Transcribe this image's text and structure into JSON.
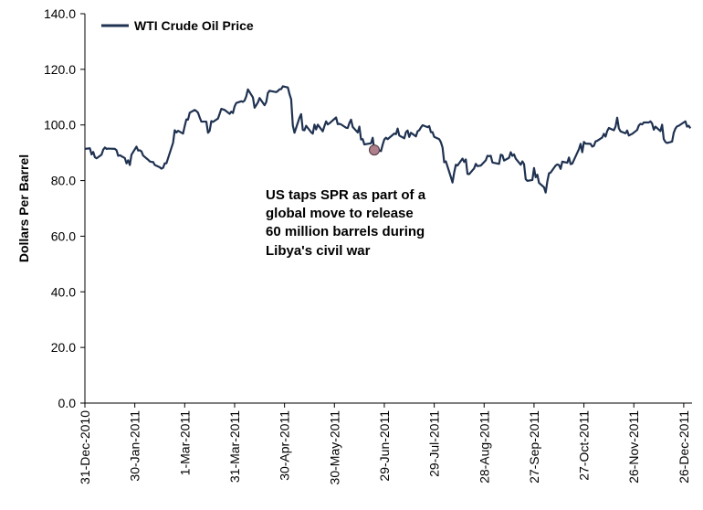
{
  "chart_data": {
    "type": "line",
    "title": "",
    "xlabel": "",
    "ylabel": "Dollars Per Barrel",
    "ylim": [
      0,
      140
    ],
    "y_ticks": [
      "0.0",
      "20.0",
      "40.0",
      "60.0",
      "80.0",
      "100.0",
      "120.0",
      "140.0"
    ],
    "x_range": [
      "2010-12-31",
      "2011-12-30"
    ],
    "x_tick_dates": [
      "2010-12-31",
      "2011-01-30",
      "2011-03-01",
      "2011-03-31",
      "2011-04-30",
      "2011-05-30",
      "2011-06-29",
      "2011-07-29",
      "2011-08-28",
      "2011-09-27",
      "2011-10-27",
      "2011-11-26",
      "2011-12-26"
    ],
    "x_tick_labels": [
      "31-Dec-2010",
      "30-Jan-2011",
      "1-Mar-2011",
      "31-Mar-2011",
      "30-Apr-2011",
      "30-May-2011",
      "29-Jun-2011",
      "29-Jul-2011",
      "28-Aug-2011",
      "27-Sep-2011",
      "27-Oct-2011",
      "26-Nov-2011",
      "26-Dec-2011"
    ],
    "grid": false,
    "legend": {
      "position": "top-left",
      "entries": [
        "WTI Crude Oil Price"
      ]
    },
    "series": [
      {
        "name": "WTI Crude Oil Price",
        "color": "#1f3251",
        "points": [
          [
            "2010-12-31",
            91.4
          ],
          [
            "2011-01-03",
            91.6
          ],
          [
            "2011-01-04",
            89.4
          ],
          [
            "2011-01-05",
            90.3
          ],
          [
            "2011-01-06",
            88.4
          ],
          [
            "2011-01-07",
            88.0
          ],
          [
            "2011-01-10",
            89.3
          ],
          [
            "2011-01-11",
            91.1
          ],
          [
            "2011-01-12",
            91.9
          ],
          [
            "2011-01-13",
            91.4
          ],
          [
            "2011-01-14",
            91.5
          ],
          [
            "2011-01-18",
            91.4
          ],
          [
            "2011-01-19",
            90.9
          ],
          [
            "2011-01-20",
            88.9
          ],
          [
            "2011-01-21",
            89.1
          ],
          [
            "2011-01-24",
            88.1
          ],
          [
            "2011-01-25",
            86.2
          ],
          [
            "2011-01-26",
            87.3
          ],
          [
            "2011-01-27",
            85.6
          ],
          [
            "2011-01-28",
            89.3
          ],
          [
            "2011-01-31",
            92.2
          ],
          [
            "2011-02-01",
            90.8
          ],
          [
            "2011-02-02",
            90.9
          ],
          [
            "2011-02-03",
            90.5
          ],
          [
            "2011-02-04",
            89.0
          ],
          [
            "2011-02-07",
            87.5
          ],
          [
            "2011-02-08",
            86.9
          ],
          [
            "2011-02-09",
            86.7
          ],
          [
            "2011-02-10",
            86.7
          ],
          [
            "2011-02-11",
            85.6
          ],
          [
            "2011-02-14",
            84.8
          ],
          [
            "2011-02-15",
            84.3
          ],
          [
            "2011-02-16",
            84.6
          ],
          [
            "2011-02-17",
            86.2
          ],
          [
            "2011-02-18",
            86.2
          ],
          [
            "2011-02-22",
            93.6
          ],
          [
            "2011-02-23",
            98.1
          ],
          [
            "2011-02-24",
            97.3
          ],
          [
            "2011-02-25",
            97.9
          ],
          [
            "2011-02-28",
            96.9
          ],
          [
            "2011-03-01",
            99.6
          ],
          [
            "2011-03-02",
            102.0
          ],
          [
            "2011-03-03",
            101.9
          ],
          [
            "2011-03-04",
            104.4
          ],
          [
            "2011-03-07",
            105.4
          ],
          [
            "2011-03-08",
            105.0
          ],
          [
            "2011-03-09",
            104.4
          ],
          [
            "2011-03-10",
            102.7
          ],
          [
            "2011-03-11",
            101.2
          ],
          [
            "2011-03-14",
            101.2
          ],
          [
            "2011-03-15",
            97.2
          ],
          [
            "2011-03-16",
            97.9
          ],
          [
            "2011-03-17",
            101.4
          ],
          [
            "2011-03-18",
            101.1
          ],
          [
            "2011-03-21",
            102.3
          ],
          [
            "2011-03-22",
            104.0
          ],
          [
            "2011-03-23",
            105.8
          ],
          [
            "2011-03-24",
            105.6
          ],
          [
            "2011-03-25",
            105.4
          ],
          [
            "2011-03-28",
            104.0
          ],
          [
            "2011-03-29",
            104.8
          ],
          [
            "2011-03-30",
            104.3
          ],
          [
            "2011-03-31",
            106.7
          ],
          [
            "2011-04-01",
            107.9
          ],
          [
            "2011-04-04",
            108.5
          ],
          [
            "2011-04-05",
            108.3
          ],
          [
            "2011-04-06",
            108.8
          ],
          [
            "2011-04-07",
            110.3
          ],
          [
            "2011-04-08",
            112.8
          ],
          [
            "2011-04-11",
            109.9
          ],
          [
            "2011-04-12",
            106.2
          ],
          [
            "2011-04-13",
            107.1
          ],
          [
            "2011-04-14",
            108.1
          ],
          [
            "2011-04-15",
            109.7
          ],
          [
            "2011-04-18",
            107.1
          ],
          [
            "2011-04-19",
            108.2
          ],
          [
            "2011-04-20",
            111.5
          ],
          [
            "2011-04-21",
            112.3
          ],
          [
            "2011-04-25",
            111.8
          ],
          [
            "2011-04-26",
            112.2
          ],
          [
            "2011-04-27",
            112.8
          ],
          [
            "2011-04-28",
            112.9
          ],
          [
            "2011-04-29",
            113.9
          ],
          [
            "2011-05-02",
            113.5
          ],
          [
            "2011-05-03",
            111.1
          ],
          [
            "2011-05-04",
            109.2
          ],
          [
            "2011-05-05",
            99.8
          ],
          [
            "2011-05-06",
            97.2
          ],
          [
            "2011-05-09",
            102.6
          ],
          [
            "2011-05-10",
            103.9
          ],
          [
            "2011-05-11",
            98.2
          ],
          [
            "2011-05-12",
            98.1
          ],
          [
            "2011-05-13",
            99.7
          ],
          [
            "2011-05-16",
            97.4
          ],
          [
            "2011-05-17",
            96.9
          ],
          [
            "2011-05-18",
            100.1
          ],
          [
            "2011-05-19",
            98.4
          ],
          [
            "2011-05-20",
            100.1
          ],
          [
            "2011-05-23",
            97.7
          ],
          [
            "2011-05-24",
            99.6
          ],
          [
            "2011-05-25",
            101.3
          ],
          [
            "2011-05-26",
            100.2
          ],
          [
            "2011-05-27",
            100.6
          ],
          [
            "2011-05-31",
            102.7
          ],
          [
            "2011-06-01",
            100.3
          ],
          [
            "2011-06-02",
            100.4
          ],
          [
            "2011-06-03",
            100.2
          ],
          [
            "2011-06-06",
            99.0
          ],
          [
            "2011-06-07",
            98.9
          ],
          [
            "2011-06-08",
            100.7
          ],
          [
            "2011-06-09",
            101.9
          ],
          [
            "2011-06-10",
            99.3
          ],
          [
            "2011-06-13",
            97.3
          ],
          [
            "2011-06-14",
            99.4
          ],
          [
            "2011-06-15",
            94.8
          ],
          [
            "2011-06-16",
            94.9
          ],
          [
            "2011-06-17",
            93.0
          ],
          [
            "2011-06-20",
            93.3
          ],
          [
            "2011-06-21",
            93.4
          ],
          [
            "2011-06-22",
            95.4
          ],
          [
            "2011-06-23",
            91.0
          ],
          [
            "2011-06-24",
            91.2
          ],
          [
            "2011-06-27",
            90.6
          ],
          [
            "2011-06-28",
            92.9
          ],
          [
            "2011-06-29",
            94.8
          ],
          [
            "2011-06-30",
            95.4
          ],
          [
            "2011-07-01",
            94.9
          ],
          [
            "2011-07-05",
            96.9
          ],
          [
            "2011-07-06",
            96.7
          ],
          [
            "2011-07-07",
            98.7
          ],
          [
            "2011-07-08",
            96.2
          ],
          [
            "2011-07-11",
            95.2
          ],
          [
            "2011-07-12",
            97.4
          ],
          [
            "2011-07-13",
            98.0
          ],
          [
            "2011-07-14",
            95.7
          ],
          [
            "2011-07-15",
            97.2
          ],
          [
            "2011-07-18",
            95.9
          ],
          [
            "2011-07-19",
            97.7
          ],
          [
            "2011-07-20",
            98.1
          ],
          [
            "2011-07-21",
            99.1
          ],
          [
            "2011-07-22",
            99.9
          ],
          [
            "2011-07-25",
            99.2
          ],
          [
            "2011-07-26",
            99.6
          ],
          [
            "2011-07-27",
            97.4
          ],
          [
            "2011-07-28",
            97.4
          ],
          [
            "2011-07-29",
            95.7
          ],
          [
            "2011-08-01",
            94.9
          ],
          [
            "2011-08-02",
            93.8
          ],
          [
            "2011-08-03",
            91.9
          ],
          [
            "2011-08-04",
            86.6
          ],
          [
            "2011-08-05",
            86.9
          ],
          [
            "2011-08-08",
            81.3
          ],
          [
            "2011-08-09",
            79.3
          ],
          [
            "2011-08-10",
            82.9
          ],
          [
            "2011-08-11",
            85.7
          ],
          [
            "2011-08-12",
            85.4
          ],
          [
            "2011-08-15",
            87.9
          ],
          [
            "2011-08-16",
            86.7
          ],
          [
            "2011-08-17",
            87.6
          ],
          [
            "2011-08-18",
            82.4
          ],
          [
            "2011-08-19",
            82.3
          ],
          [
            "2011-08-22",
            84.4
          ],
          [
            "2011-08-23",
            86.0
          ],
          [
            "2011-08-24",
            85.2
          ],
          [
            "2011-08-25",
            85.3
          ],
          [
            "2011-08-26",
            85.4
          ],
          [
            "2011-08-29",
            87.3
          ],
          [
            "2011-08-30",
            88.9
          ],
          [
            "2011-08-31",
            88.8
          ],
          [
            "2011-09-01",
            88.9
          ],
          [
            "2011-09-02",
            86.5
          ],
          [
            "2011-09-06",
            86.0
          ],
          [
            "2011-09-07",
            89.3
          ],
          [
            "2011-09-08",
            89.1
          ],
          [
            "2011-09-09",
            87.2
          ],
          [
            "2011-09-12",
            88.2
          ],
          [
            "2011-09-13",
            90.2
          ],
          [
            "2011-09-14",
            88.9
          ],
          [
            "2011-09-15",
            89.4
          ],
          [
            "2011-09-16",
            87.9
          ],
          [
            "2011-09-19",
            85.7
          ],
          [
            "2011-09-20",
            86.9
          ],
          [
            "2011-09-21",
            85.9
          ],
          [
            "2011-09-22",
            80.5
          ],
          [
            "2011-09-23",
            79.9
          ],
          [
            "2011-09-26",
            80.2
          ],
          [
            "2011-09-27",
            84.5
          ],
          [
            "2011-09-28",
            81.2
          ],
          [
            "2011-09-29",
            82.1
          ],
          [
            "2011-09-30",
            79.2
          ],
          [
            "2011-10-03",
            77.6
          ],
          [
            "2011-10-04",
            75.7
          ],
          [
            "2011-10-05",
            79.7
          ],
          [
            "2011-10-06",
            82.6
          ],
          [
            "2011-10-07",
            82.9
          ],
          [
            "2011-10-10",
            85.4
          ],
          [
            "2011-10-11",
            85.8
          ],
          [
            "2011-10-12",
            85.6
          ],
          [
            "2011-10-13",
            84.2
          ],
          [
            "2011-10-14",
            86.8
          ],
          [
            "2011-10-17",
            86.4
          ],
          [
            "2011-10-18",
            88.3
          ],
          [
            "2011-10-19",
            85.9
          ],
          [
            "2011-10-20",
            86.1
          ],
          [
            "2011-10-21",
            87.4
          ],
          [
            "2011-10-24",
            91.3
          ],
          [
            "2011-10-25",
            93.2
          ],
          [
            "2011-10-26",
            90.2
          ],
          [
            "2011-10-27",
            93.9
          ],
          [
            "2011-10-28",
            93.3
          ],
          [
            "2011-10-31",
            93.2
          ],
          [
            "2011-11-01",
            92.2
          ],
          [
            "2011-11-02",
            92.5
          ],
          [
            "2011-11-03",
            94.1
          ],
          [
            "2011-11-04",
            94.3
          ],
          [
            "2011-11-07",
            95.5
          ],
          [
            "2011-11-08",
            96.8
          ],
          [
            "2011-11-09",
            95.8
          ],
          [
            "2011-11-10",
            97.8
          ],
          [
            "2011-11-11",
            98.9
          ],
          [
            "2011-11-14",
            98.1
          ],
          [
            "2011-11-15",
            99.4
          ],
          [
            "2011-11-16",
            102.6
          ],
          [
            "2011-11-17",
            98.8
          ],
          [
            "2011-11-18",
            97.7
          ],
          [
            "2011-11-21",
            97.0
          ],
          [
            "2011-11-22",
            98.0
          ],
          [
            "2011-11-23",
            96.2
          ],
          [
            "2011-11-25",
            96.8
          ],
          [
            "2011-11-28",
            98.2
          ],
          [
            "2011-11-29",
            99.8
          ],
          [
            "2011-11-30",
            100.4
          ],
          [
            "2011-12-01",
            100.2
          ],
          [
            "2011-12-02",
            100.9
          ],
          [
            "2011-12-05",
            100.9
          ],
          [
            "2011-12-06",
            101.3
          ],
          [
            "2011-12-07",
            100.5
          ],
          [
            "2011-12-08",
            98.3
          ],
          [
            "2011-12-09",
            99.4
          ],
          [
            "2011-12-12",
            97.8
          ],
          [
            "2011-12-13",
            100.1
          ],
          [
            "2011-12-14",
            94.9
          ],
          [
            "2011-12-15",
            93.9
          ],
          [
            "2011-12-16",
            93.5
          ],
          [
            "2011-12-19",
            94.0
          ],
          [
            "2011-12-20",
            97.2
          ],
          [
            "2011-12-21",
            98.7
          ],
          [
            "2011-12-22",
            99.5
          ],
          [
            "2011-12-23",
            99.7
          ],
          [
            "2011-12-27",
            101.3
          ],
          [
            "2011-12-28",
            99.4
          ],
          [
            "2011-12-29",
            99.7
          ],
          [
            "2011-12-30",
            98.8
          ]
        ]
      }
    ],
    "annotations": [
      {
        "lines": [
          "US taps SPR as part of a",
          "global move to release",
          "60 million barrels during",
          "Libya's civil war"
        ],
        "marker_date": "2011-06-23",
        "marker_value": 91.0,
        "marker_color": "#b07f8c"
      }
    ]
  }
}
